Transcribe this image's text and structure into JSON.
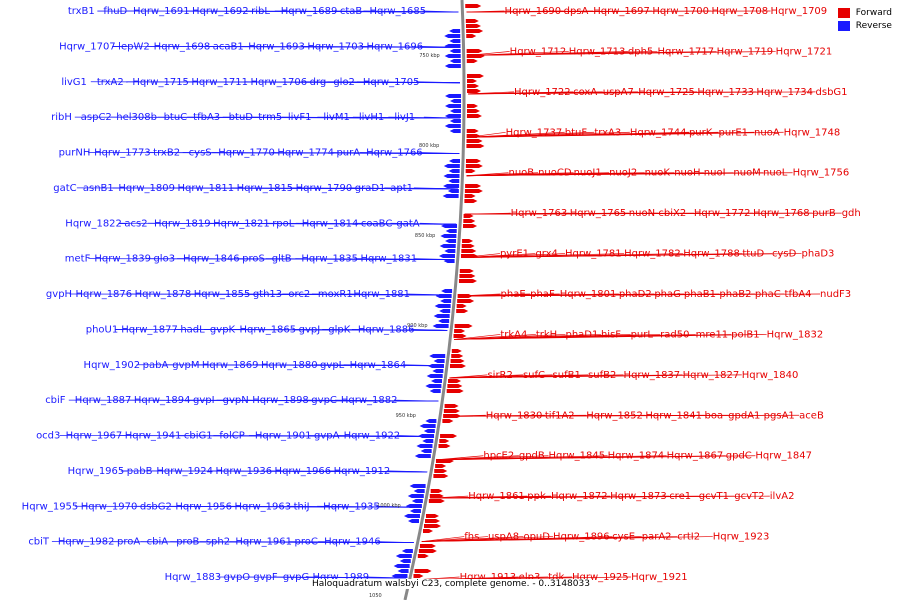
{
  "legend": {
    "forward": {
      "label": "Forward",
      "color": "#e60000"
    },
    "reverse": {
      "label": "Reverse",
      "color": "#1a1aff"
    }
  },
  "caption": "Haloquadratum walsbyi C23, complete genome. - 0..3148033",
  "backbone_color": "#888888",
  "scale_ticks": [
    "750 kbp",
    "800 kbp",
    "850 kbp",
    "900 kbp",
    "950 kbp",
    "1000 kbp",
    "1050"
  ],
  "forward_labels": [
    "Hqrw_1690",
    "dpsA",
    "Hqrw_1697",
    "Hqrw_1700",
    "Hqrw_1708",
    "Hqrw_1709",
    "Hqrw_1712",
    "Hqrw_1713",
    "dph5",
    "Hqrw_1717",
    "Hqrw_1719",
    "Hqrw_1721",
    "Hqrw_1722",
    "coxA",
    "uspA7",
    "Hqrw_1725",
    "Hqrw_1733",
    "Hqrw_1734",
    "dsbG1",
    "Hqrw_1737",
    "btuF",
    "trxA3",
    "Hqrw_1744",
    "purK",
    "purE1",
    "nuoA",
    "Hqrw_1748",
    "nuoB",
    "nuoCD",
    "nuoJ1",
    "nuoJ2",
    "nuoK",
    "nuoH",
    "nuoI",
    "nuoM",
    "nuoL",
    "Hqrw_1756",
    "Hqrw_1763",
    "Hqrw_1765",
    "nuoN",
    "cbiX2",
    "Hqrw_1772",
    "Hqrw_1768",
    "purB",
    "gdh",
    "pyrE1",
    "grx4",
    "Hqrw_1781",
    "Hqrw_1782",
    "Hqrw_1788",
    "ttuD",
    "cysD",
    "phaD3",
    "phaE",
    "phaF",
    "Hqrw_1801",
    "phaD2",
    "phaG",
    "phaB1",
    "phaB2",
    "phaC",
    "tfbA4",
    "nudF3",
    "trkA4",
    "trkH",
    "phaD1",
    "hisF",
    "purL",
    "rad50",
    "mre11",
    "polB1",
    "Hqrw_1832",
    "sirR2",
    "sufC",
    "sufB1",
    "sufB2",
    "Hqrw_1837",
    "Hqrw_1827",
    "Hqrw_1840",
    "Hqrw_1830",
    "tif1A2",
    "Hqrw_1852",
    "Hqrw_1841",
    "boa",
    "gpdA1",
    "pgsA1",
    "aceB",
    "hpcE2",
    "gpdB",
    "Hqrw_1845",
    "Hqrw_1874",
    "Hqrw_1867",
    "gpdC",
    "Hqrw_1847",
    "Hqrw_1861",
    "ppk",
    "Hqrw_1872",
    "Hqrw_1873",
    "cre1",
    "gcvT1",
    "gcvT2",
    "ilvA2",
    "fhs",
    "uspA8",
    "opuD",
    "Hqrw_1896",
    "cysE",
    "parA2",
    "crtI2",
    "Hqrw_1923",
    "Hqrw_1913",
    "elp3",
    "tdk",
    "Hqrw_1925",
    "Hqrw_1921"
  ],
  "reverse_labels": [
    "Hqrw_1685",
    "ctaB",
    "Hqrw_1689",
    "ribL",
    "Hqrw_1692",
    "Hqrw_1691",
    "fhuD",
    "trxB1",
    "Hqrw_1696",
    "Hqrw_1703",
    "Hqrw_1693",
    "acaB1",
    "Hqrw_1698",
    "lepW2",
    "Hqrw_1707",
    "Hqrw_1705",
    "glo2",
    "drg",
    "Hqrw_1706",
    "Hqrw_1711",
    "Hqrw_1715",
    "trxA2",
    "livG1",
    "livJ1",
    "livH1",
    "livM1",
    "livF1",
    "trm5",
    "btuD",
    "tfbA3",
    "btuC",
    "hel308b",
    "aspC2",
    "ribH",
    "Hqrw_1766",
    "purA",
    "Hqrw_1774",
    "Hqrw_1770",
    "cysS",
    "trxB2",
    "Hqrw_1773",
    "purNH",
    "apt1",
    "graD1",
    "Hqrw_1790",
    "Hqrw_1815",
    "Hqrw_1811",
    "Hqrw_1809",
    "asnB1",
    "gatC",
    "gatA",
    "coaBC",
    "Hqrw_1814",
    "rpoL",
    "Hqrw_1821",
    "Hqrw_1819",
    "acs2",
    "Hqrw_1822",
    "Hqrw_1831",
    "Hqrw_1835",
    "gltB",
    "proS",
    "Hqrw_1846",
    "glo3",
    "Hqrw_1839",
    "metF",
    "Hqrw_1881",
    "moxR1",
    "orc2",
    "gth13",
    "Hqrw_1855",
    "Hqrw_1878",
    "Hqrw_1876",
    "gvpH",
    "Hqrw_1886",
    "glpK",
    "gvpJ",
    "Hqrw_1865",
    "gvpK",
    "hadL",
    "Hqrw_1877",
    "phoU1",
    "Hqrw_1864",
    "gvpL",
    "Hqrw_1880",
    "Hqrw_1869",
    "gvpM",
    "pabA",
    "Hqrw_1902",
    "Hqrw_1882",
    "gvpC",
    "Hqrw_1898",
    "gvpN",
    "gvpI",
    "Hqrw_1894",
    "Hqrw_1887",
    "cbiF",
    "Hqrw_1922",
    "gvpA",
    "Hqrw_1901",
    "folCP",
    "cbiG1",
    "Hqrw_1941",
    "Hqrw_1967",
    "ocd3",
    "Hqrw_1912",
    "Hqrw_1966",
    "Hqrw_1936",
    "Hqrw_1924",
    "pabB",
    "Hqrw_1965",
    "Hqrw_1935",
    "thiJ",
    "Hqrw_1963",
    "Hqrw_1956",
    "dsbG2",
    "Hqrw_1970",
    "Hqrw_1955",
    "Hqrw_1946",
    "proC",
    "Hqrw_1961",
    "sph2",
    "proB",
    "cbiA",
    "proA",
    "Hqrw_1982",
    "cbiT",
    "Hqrw_1989",
    "gvpG",
    "gvpF",
    "gvpO",
    "Hqrw_1883"
  ]
}
